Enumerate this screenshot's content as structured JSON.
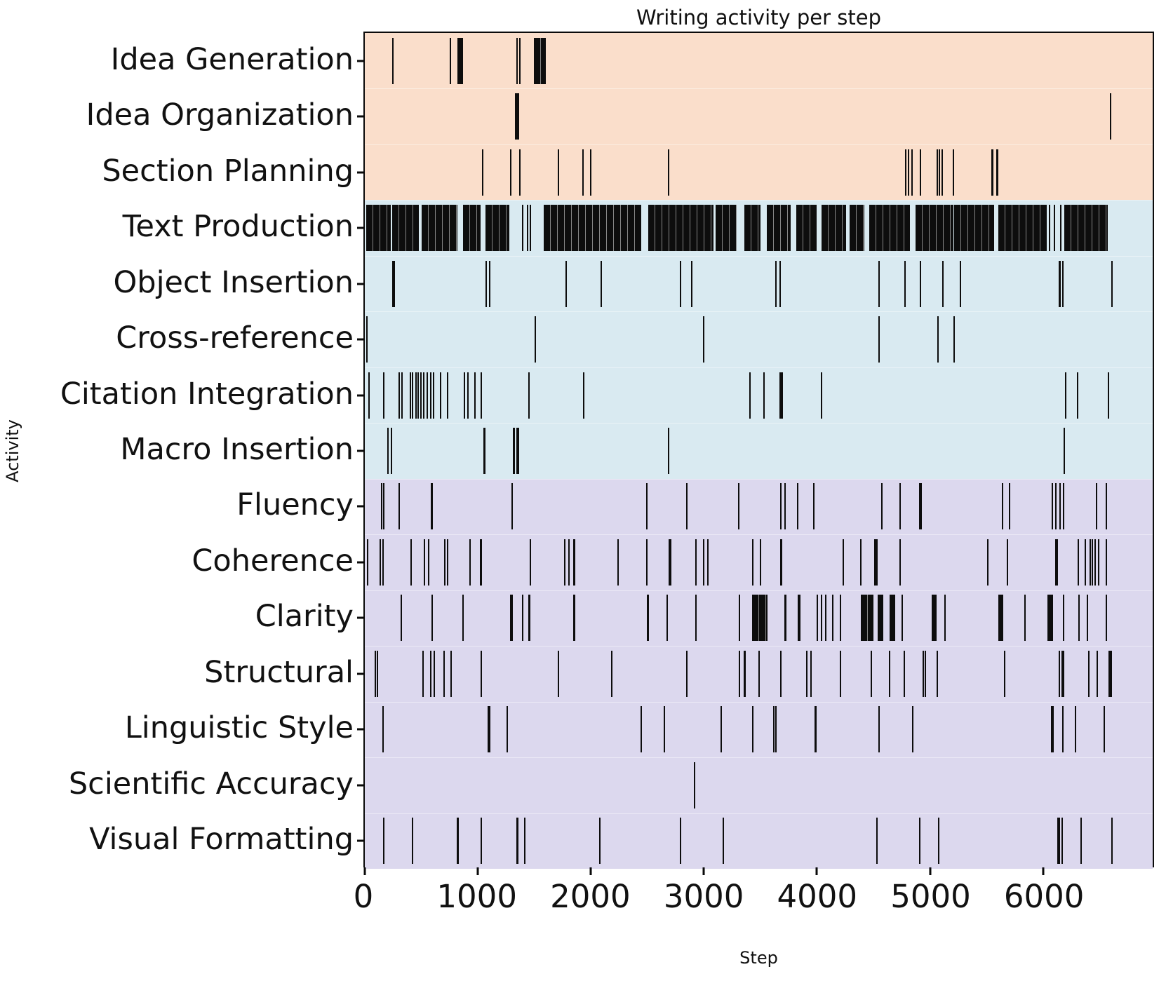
{
  "title": "Writing activity per step",
  "xlabel": "Step",
  "ylabel": "Activity",
  "chart_data": {
    "type": "eventplot",
    "x_max": 6970,
    "x_ticks": [
      0,
      1000,
      2000,
      3000,
      4000,
      5000,
      6000
    ],
    "event_color": "#0d0d0d",
    "legend": "none",
    "grid": false,
    "groups": [
      {
        "name": "planning",
        "color": "#fadecb",
        "rows": [
          {
            "label": "Idea Generation",
            "events": [
              250,
              760,
              828,
              836,
              844,
              852,
              860,
              1348,
              1372
            ],
            "bands": [
              [
                1495,
                1600
              ]
            ]
          },
          {
            "label": "Idea Organization",
            "events": [
              1335,
              1343,
              1351,
              1359,
              6600
            ],
            "bands": []
          },
          {
            "label": "Section Planning",
            "events": [
              1043,
              1290,
              1372,
              1715,
              1930,
              2000,
              2685,
              4784,
              4812,
              4840,
              4917,
              5063,
              5086,
              5110,
              5205,
              5550,
              5558,
              5590,
              5598
            ],
            "bands": []
          }
        ]
      },
      {
        "name": "production",
        "color": "#d9eaf1",
        "rows": [
          {
            "label": "Text Production",
            "events": [
              1395,
              1440,
              1465,
              6060,
              6100,
              6160
            ],
            "bands": [
              [
                10,
                230
              ],
              [
                245,
                480
              ],
              [
                505,
                820
              ],
              [
                870,
                1025
              ],
              [
                1068,
                1280
              ],
              [
                1580,
                2445
              ],
              [
                2505,
                3085
              ],
              [
                3105,
                3290
              ],
              [
                3360,
                3500
              ],
              [
                3555,
                3770
              ],
              [
                3820,
                4000
              ],
              [
                4040,
                4255
              ],
              [
                4290,
                4420
              ],
              [
                4460,
                4825
              ],
              [
                4875,
                5205
              ],
              [
                5215,
                5565
              ],
              [
                5605,
                6035
              ],
              [
                6190,
                6570
              ]
            ]
          },
          {
            "label": "Object Insertion",
            "events": [
              250,
              258,
              1075,
              1102,
              1784,
              2090,
              2790,
              2895,
              3636,
              3673,
              4551,
              4780,
              4917,
              5114,
              5270,
              6143,
              6151,
              6175,
              6610
            ],
            "bands": []
          },
          {
            "label": "Cross-reference",
            "events": [
              20,
              1510,
              2996,
              4551,
              5068,
              5214
            ],
            "bands": []
          },
          {
            "label": "Citation Integration",
            "events": [
              37,
              169,
              306,
              329,
              402,
              425,
              453,
              471,
              494,
              521,
              553,
              581,
              608,
              672,
              732,
              883,
              910,
              974,
              1029,
              1454,
              1939,
              3408,
              3531,
              3675,
              3683,
              3691,
              4039,
              6198,
              6303,
              6577
            ],
            "bands": []
          },
          {
            "label": "Macro Insertion",
            "events": [
              206,
              238,
              1055,
              1063,
              1317,
              1325,
              1349,
              1357,
              2685,
              6189
            ],
            "bands": []
          }
        ]
      },
      {
        "name": "revision",
        "color": "#dcd8ee",
        "rows": [
          {
            "label": "Fluency",
            "events": [
              146,
              169,
              306,
              590,
              598,
              1304,
              2493,
              2850,
              3307,
              3682,
              3719,
              3828,
              3970,
              4574,
              4734,
              4912,
              4920,
              5640,
              5704,
              6083,
              6115,
              6152,
              6184,
              6472,
              6563
            ],
            "bands": []
          },
          {
            "label": "Coherence",
            "events": [
              23,
              137,
              160,
              412,
              526,
              563,
              709,
              732,
              928,
              1025,
              1033,
              1464,
              1770,
              1807,
              1848,
              1856,
              2241,
              2493,
              2695,
              2703,
              2927,
              2996,
              3033,
              3431,
              3499,
              3678,
              3686,
              4231,
              4391,
              4512,
              4520,
              4528,
              4734,
              5512,
              5685,
              6112,
              6120,
              6128,
              6312,
              6372,
              6417,
              6436,
              6463,
              6495,
              6563
            ],
            "bands": []
          },
          {
            "label": "Clarity",
            "events": [
              320,
              595,
              869,
              1288,
              1296,
              1304,
              1395,
              1450,
              1458,
              1848,
              1856,
              2676,
              2927,
              3316,
              3715,
              3723,
              3838,
              3846,
              4002,
              4039,
              4075,
              4139,
              4208,
              4757,
              5132,
              5841,
              6184,
              6321,
              6390,
              6563
            ],
            "bands": [
              [
                2494,
                2516
              ],
              [
                3425,
                3560
              ],
              [
                4388,
                4500
              ],
              [
                4535,
                4585
              ],
              [
                4642,
                4692
              ],
              [
                5012,
                5058
              ],
              [
                5604,
                5648
              ],
              [
                6040,
                6086
              ]
            ]
          },
          {
            "label": "Structural",
            "events": [
              91,
              110,
              517,
              581,
              617,
              700,
              764,
              1029,
              1715,
              2182,
              2850,
              3316,
              3358,
              3366,
              3490,
              3682,
              3911,
              3947,
              4208,
              4482,
              4642,
              4771,
              4941,
              4957,
              5063,
              5658,
              6143,
              6171,
              6179,
              6404,
              6481,
              6588,
              6596,
              6604
            ],
            "bands": []
          },
          {
            "label": "Linguistic Style",
            "events": [
              160,
              1094,
              1102,
              1258,
              2447,
              2653,
              3156,
              3431,
              3620,
              3634,
              3985,
              3993,
              4551,
              4848,
              6079,
              6087,
              6175,
              6289,
              6540
            ],
            "bands": []
          },
          {
            "label": "Scientific Accuracy",
            "events": [
              2918
            ],
            "bands": []
          },
          {
            "label": "Visual Formatting",
            "events": [
              169,
              425,
              819,
              827,
              1029,
              1345,
              1353,
              1418,
              2081,
              2790,
              3170,
              4528,
              4908,
              5077,
              6134,
              6142,
              6170,
              6335,
              6609
            ],
            "bands": []
          }
        ]
      }
    ]
  }
}
